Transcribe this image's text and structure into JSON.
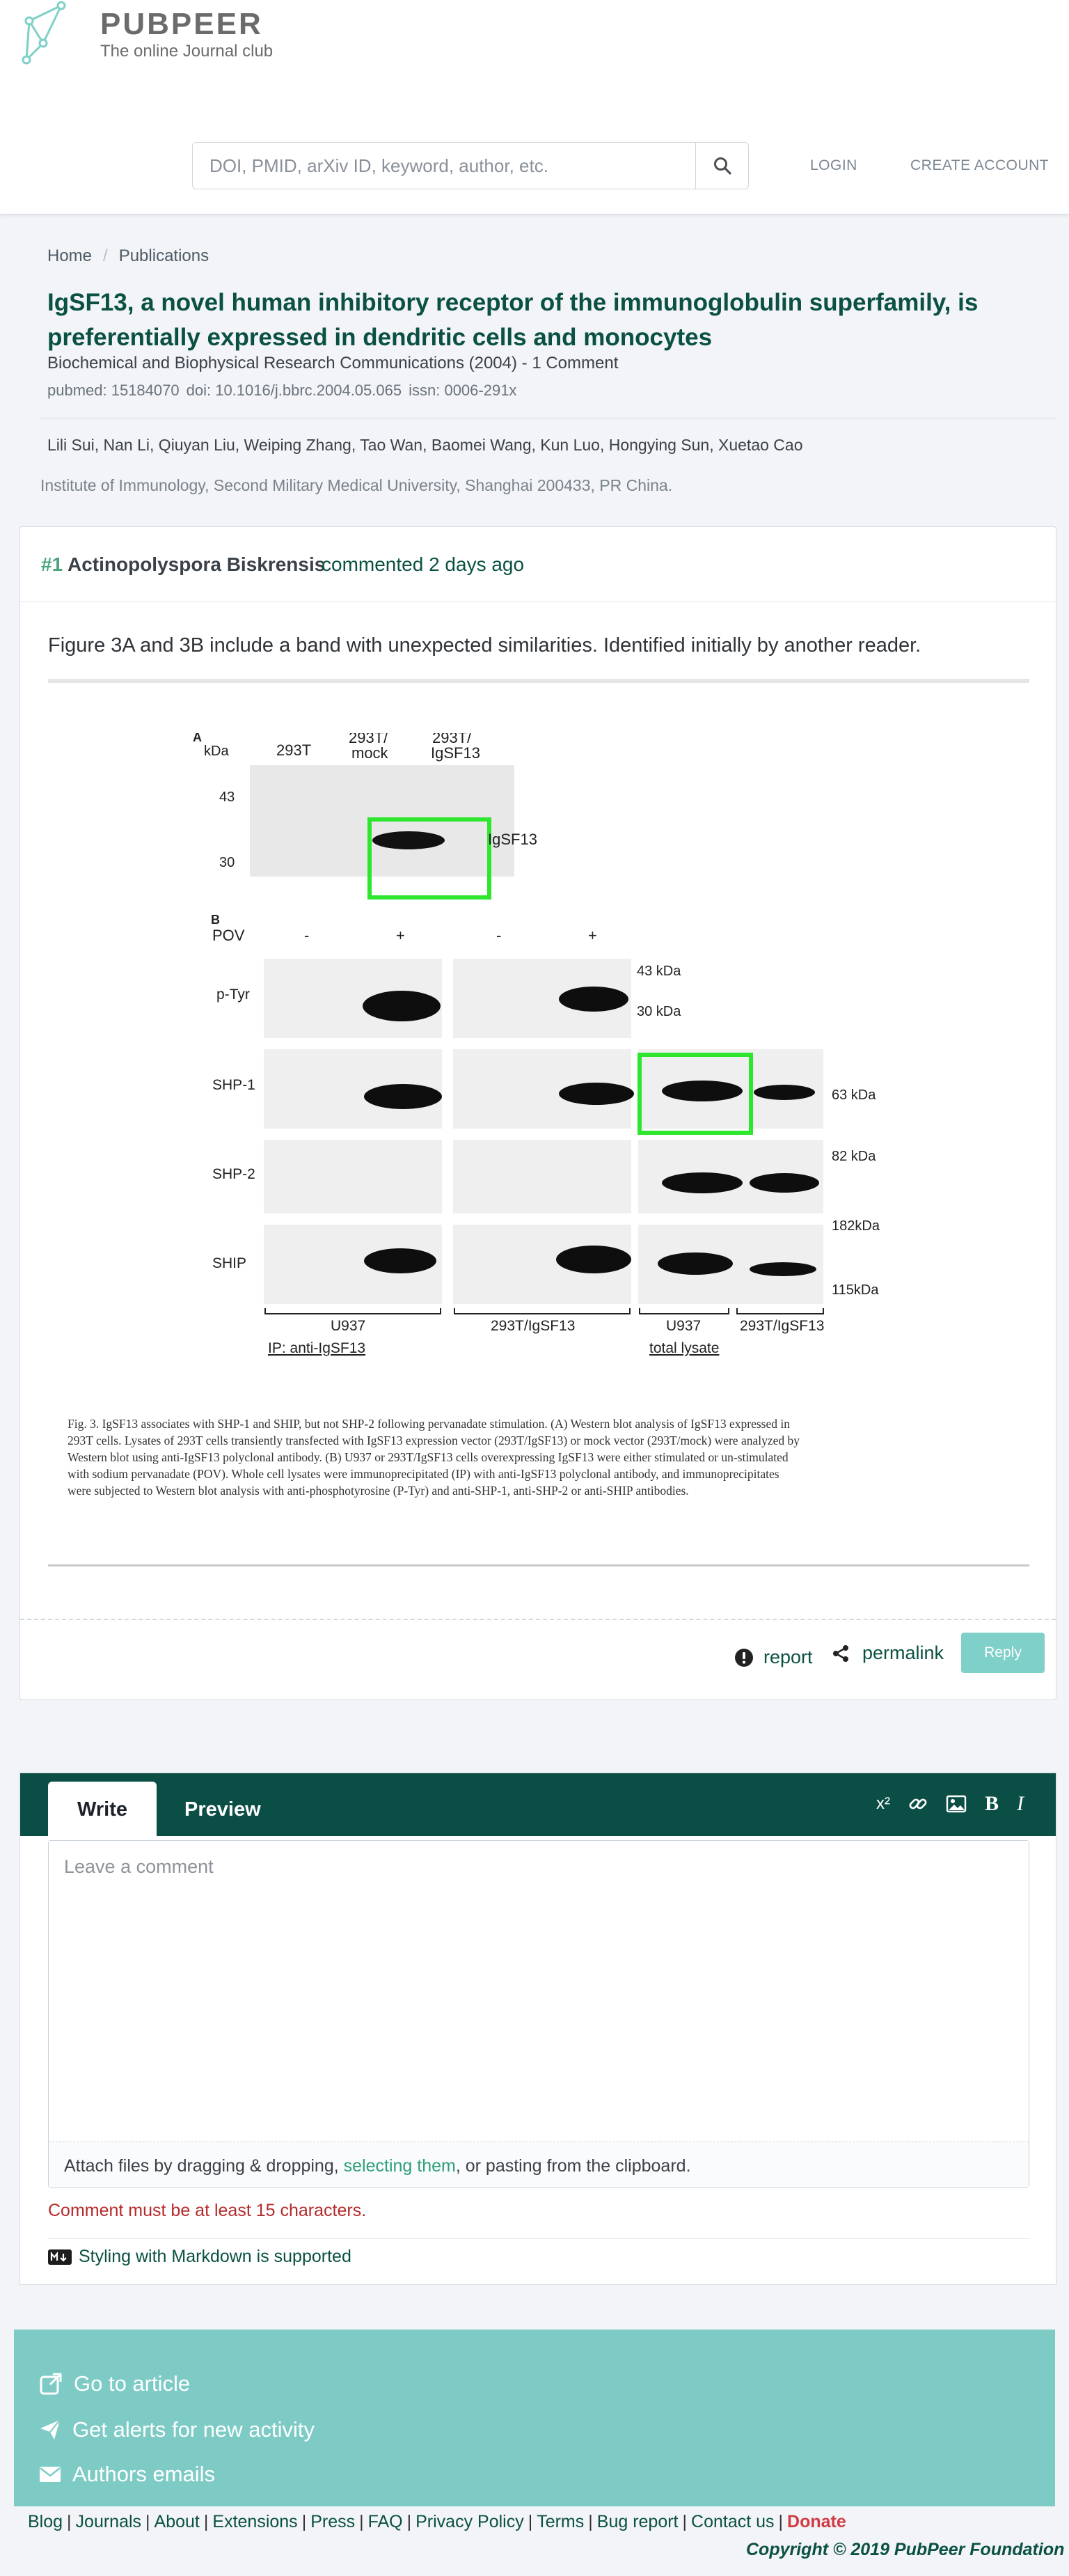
{
  "header": {
    "brand_name": "PUBPEER",
    "brand_tagline": "The online Journal club",
    "search_placeholder": "DOI, PMID, arXiv ID, keyword, author, etc.",
    "nav": {
      "login": "LOGIN",
      "create_account": "CREATE ACCOUNT"
    },
    "icons": {
      "logo": "network-graph-logo",
      "search": "search-icon"
    }
  },
  "breadcrumb": {
    "home": "Home",
    "sep": "/",
    "section": "Publications"
  },
  "publication": {
    "title": "IgSF13, a novel human inhibitory receptor of the immunoglobulin superfamily, is preferentially expressed in dendritic cells and monocytes",
    "journal_line": "Biochemical and Biophysical Research Communications (2004) - 1 Comment",
    "pubmed": "pubmed: 15184070",
    "doi": "doi: 10.1016/j.bbrc.2004.05.065",
    "issn": "issn: 0006-291x",
    "authors": "Lili Sui, Nan Li, Qiuyan Liu, Weiping Zhang, Tao Wan, Baomei Wang, Kun Luo, Hongying Sun, Xuetao Cao",
    "institution": "Institute of Immunology, Second Military Medical University, Shanghai 200433, PR China."
  },
  "comment": {
    "number": "#1",
    "author": "Actinopolyspora Biskrensis",
    "when": "commented 2 days ago",
    "text": "Figure 3A and 3B include a band with unexpected similarities. Identified initially by another reader.",
    "actions": {
      "report": "report",
      "permalink": "permalink",
      "reply": "Reply"
    },
    "figure": {
      "panel_a_label": "A",
      "kda": "kDa",
      "lanes_a": [
        "293T",
        "293T/",
        "mock",
        "293T/",
        "IgSF13"
      ],
      "marker_43": "43",
      "marker_30": "30",
      "band_label": "IgSF13",
      "panel_b_label": "B",
      "pov": "POV",
      "pov_signs": [
        "-",
        "+",
        "-",
        "+"
      ],
      "rows": [
        "p-Tyr",
        "SHP-1",
        "SHP-2",
        "SHIP"
      ],
      "right_markers": [
        "43 kDa",
        "30 kDa",
        "63 kDa",
        "82 kDa",
        "182kDa",
        "115kDa"
      ],
      "bottom_labels": [
        "U937",
        "293T/IgSF13",
        "U937",
        "293T/IgSF13"
      ],
      "ip_label": "IP: anti-IgSF13",
      "lysate_label": "total lysate",
      "caption_1": "Fig. 3. IgSF13 associates with SHP-1 and SHIP, but not SHP-2 following pervanadate stimulation. (A) Western blot analysis of IgSF13 expressed in",
      "caption_2": "293T cells. Lysates of 293T cells transiently transfected with IgSF13 expression vector (293T/IgSF13) or mock vector (293T/mock) were analyzed by",
      "caption_3": "Western blot using anti-IgSF13 polyclonal antibody. (B) U937 or 293T/IgSF13 cells overexpressing IgSF13 were either stimulated or un-stimulated",
      "caption_4": "with sodium pervanadate (POV). Whole cell lysates were immunoprecipitated (IP) with anti-IgSF13 polyclonal antibody, and immunoprecipitates",
      "caption_5": "were subjected to Western blot analysis with anti-phosphotyrosine (P-Tyr) and anti-SHP-1, anti-SHP-2 or anti-SHIP antibodies.",
      "highlight_color": "#2ee62e"
    }
  },
  "editor": {
    "tab_write": "Write",
    "tab_preview": "Preview",
    "tools": [
      "superscript-icon",
      "link-icon",
      "image-icon",
      "bold-icon",
      "italic-icon"
    ],
    "tool_superscript": "x²",
    "tool_bold": "B",
    "tool_italic": "I",
    "placeholder": "Leave a comment",
    "attach_prefix": "Attach files by dragging & dropping, ",
    "attach_link": "selecting them",
    "attach_suffix": ", or pasting from the clipboard.",
    "error": "Comment must be at least 15 characters.",
    "markdown_note": "Styling with Markdown is supported"
  },
  "bottom_panel": {
    "go_to_article": "Go to article",
    "get_alerts": "Get alerts for new activity",
    "authors_emails": "Authors emails"
  },
  "footer": {
    "links": [
      "Blog",
      "Journals",
      "About",
      "Extensions",
      "Press",
      "FAQ",
      "Privacy Policy",
      "Terms",
      "Bug report",
      "Contact us"
    ],
    "separator": "|",
    "donate": "Donate",
    "copyright": "Copyright © 2019 PubPeer Foundation"
  },
  "colors": {
    "brand_dark": "#0b5143",
    "accent_green": "#4aa37a",
    "reply_button": "#7fd0c9",
    "editor_bar": "#0b4e45",
    "bottom_panel": "#7ecbc6",
    "error_red": "#b52a2a",
    "donate_red": "#d23b43"
  }
}
